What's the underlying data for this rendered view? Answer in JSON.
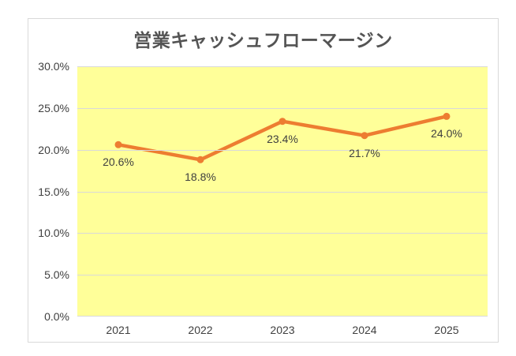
{
  "chart_data": {
    "type": "line",
    "title": "営業キャッシュフローマージン",
    "categories": [
      "2021",
      "2022",
      "2023",
      "2024",
      "2025"
    ],
    "series": [
      {
        "name": "営業キャッシュフローマージン",
        "values": [
          20.6,
          18.8,
          23.4,
          21.7,
          24.0
        ]
      }
    ],
    "data_labels": [
      "20.6%",
      "18.8%",
      "23.4%",
      "21.7%",
      "24.0%"
    ],
    "y_tick_labels": [
      "30.0%",
      "25.0%",
      "20.0%",
      "15.0%",
      "10.0%",
      "5.0%",
      "0.0%"
    ],
    "ylim": [
      0,
      30
    ],
    "y_tick_step": 5,
    "grid": "horizontal",
    "legend": "none",
    "marker": "circle",
    "data_label_position": "below",
    "colors": {
      "series_line": "#ED7D31",
      "plot_background": "#FFFF99",
      "gridline": "#D9D9D9",
      "chart_border": "#D9D9D9",
      "chart_background": "#FFFFFF",
      "title_text": "#545454",
      "axis_text": "#404040",
      "data_label_text": "#404040"
    }
  }
}
